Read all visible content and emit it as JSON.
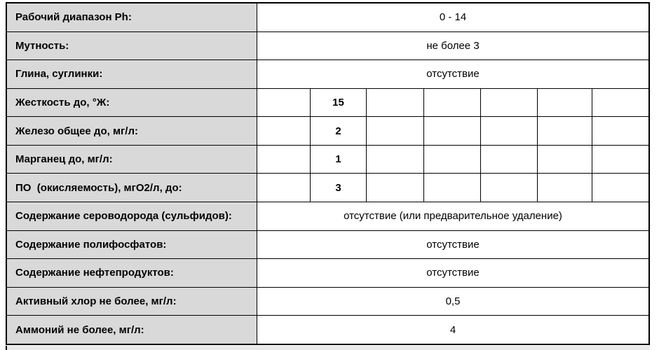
{
  "table": {
    "colors": {
      "label_background": "#d9d9d9",
      "value_background": "#ffffff",
      "border": "#000000",
      "text": "#000000"
    },
    "rows": [
      {
        "label": "Рабочий диапазон Ph:",
        "type": "merged",
        "value": "0 - 14"
      },
      {
        "label": "Мутность:",
        "type": "merged",
        "value": "не более 3"
      },
      {
        "label": "Глина, суглинки:",
        "type": "merged",
        "value": "отсутствие"
      },
      {
        "label": "Жесткость до, °Ж:",
        "type": "cells",
        "cells": [
          "",
          "15",
          "",
          "",
          "",
          "",
          ""
        ]
      },
      {
        "label": "Железо общее до, мг/л:",
        "type": "cells",
        "cells": [
          "",
          "2",
          "",
          "",
          "",
          "",
          ""
        ]
      },
      {
        "label": "Марганец до, мг/л:",
        "type": "cells",
        "cells": [
          "",
          "1",
          "",
          "",
          "",
          "",
          ""
        ]
      },
      {
        "label": "ПО  (окисляемость), мгО2/л, до:",
        "type": "cells",
        "cells": [
          "",
          "3",
          "",
          "",
          "",
          "",
          ""
        ]
      },
      {
        "label": "Содержание сероводорода (сульфидов):",
        "type": "merged",
        "value": "отсутствие (или предварительное удаление)"
      },
      {
        "label": "Содержание полифосфатов:",
        "type": "merged",
        "value": "отсутствие"
      },
      {
        "label": "Содержание нефтепродуктов:",
        "type": "merged",
        "value": "отсутствие"
      },
      {
        "label": "Активный хлор не более, мг/л:",
        "type": "merged",
        "value": "0,5"
      },
      {
        "label": "Аммоний не более, мг/л:",
        "type": "merged",
        "value": "4"
      }
    ]
  }
}
